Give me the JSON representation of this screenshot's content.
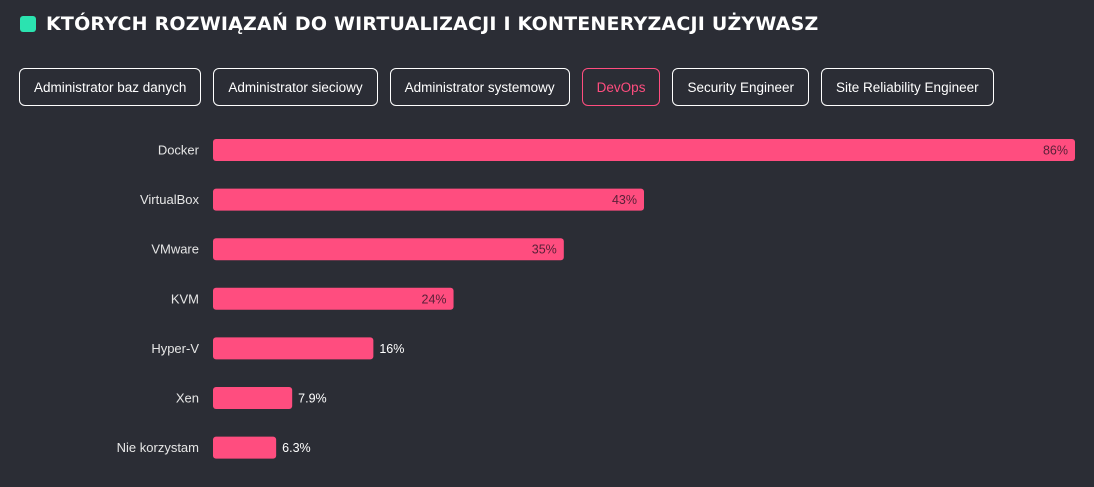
{
  "title": "KTÓRYCH ROZWIĄZAŃ DO WIRTUALIZACJI I KONTENERYZACJI UŻYWASZ",
  "colors": {
    "accent_marker": "#2be3b0",
    "bar": "#ff4d7f",
    "background": "#2b2d35"
  },
  "filters": [
    {
      "label": "Administrator baz danych",
      "active": false
    },
    {
      "label": "Administrator sieciowy",
      "active": false
    },
    {
      "label": "Administrator systemowy",
      "active": false
    },
    {
      "label": "DevOps",
      "active": true
    },
    {
      "label": "Security Engineer",
      "active": false
    },
    {
      "label": "Site Reliability Engineer",
      "active": false
    }
  ],
  "chart_data": {
    "type": "bar",
    "orientation": "horizontal",
    "categories": [
      "Docker",
      "VirtualBox",
      "VMware",
      "KVM",
      "Hyper-V",
      "Xen",
      "Nie korzystam"
    ],
    "values": [
      86,
      43,
      35,
      24,
      16,
      7.9,
      6.3
    ],
    "value_labels": [
      "86%",
      "43%",
      "35%",
      "24%",
      "16%",
      "7.9%",
      "6.3%"
    ],
    "xlim": [
      0,
      86
    ],
    "grid": false,
    "legend": "none"
  }
}
